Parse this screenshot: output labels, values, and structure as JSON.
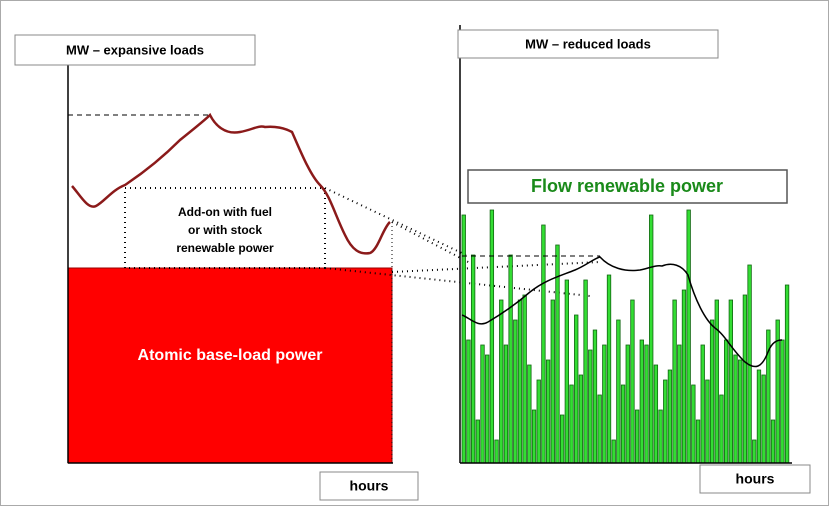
{
  "left_panel": {
    "axis_label": "MW – expansive loads",
    "box_text": [
      "Add-on with fuel",
      "or with stock",
      "renewable power"
    ],
    "base_label": "Atomic base-load power",
    "x_label": "hours"
  },
  "right_panel": {
    "axis_label": "MW – reduced loads",
    "flow_label": "Flow renewable power",
    "x_label": "hours"
  }
}
